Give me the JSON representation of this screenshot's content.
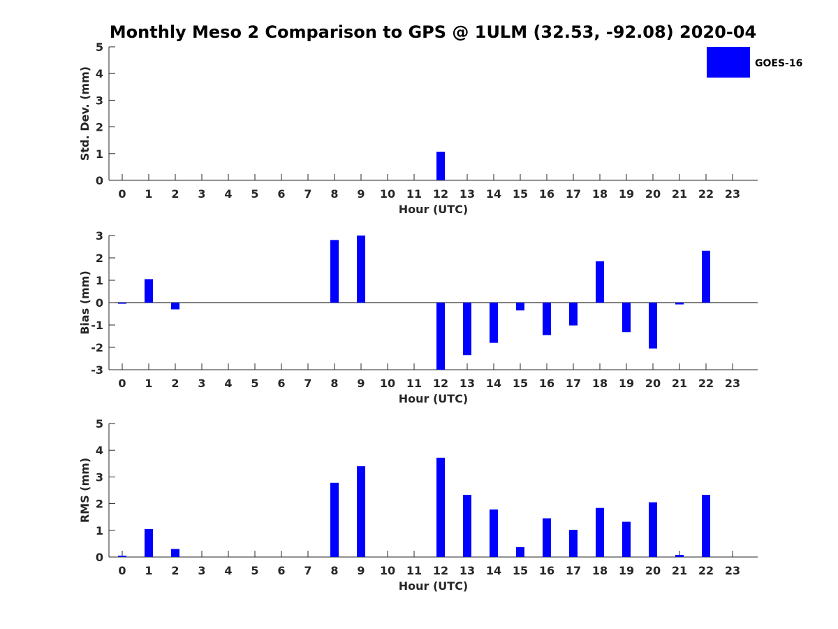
{
  "title": "Monthly Meso 2 Comparison to GPS @ 1ULM (32.53, -92.08) 2020-04",
  "legend": {
    "label": "GOES-16",
    "color": "#0000ff",
    "placement": "top-right"
  },
  "bar_color": "#0000ff",
  "chart_data": [
    {
      "type": "bar",
      "id": "std",
      "series_name": "GOES-16",
      "categories": [
        "0",
        "1",
        "2",
        "3",
        "4",
        "5",
        "6",
        "7",
        "8",
        "9",
        "10",
        "11",
        "12",
        "13",
        "14",
        "15",
        "16",
        "17",
        "18",
        "19",
        "20",
        "21",
        "22",
        "23"
      ],
      "values": [
        null,
        null,
        null,
        null,
        null,
        null,
        null,
        null,
        null,
        null,
        null,
        null,
        1.07,
        null,
        null,
        null,
        null,
        null,
        null,
        null,
        null,
        null,
        null,
        null
      ],
      "xlabel": "Hour (UTC)",
      "ylabel": "Std. Dev. (mm)",
      "ylim": [
        0,
        5
      ],
      "yticks": [
        "0",
        "1",
        "2",
        "3",
        "4",
        "5"
      ],
      "grid": false
    },
    {
      "type": "bar",
      "id": "bias",
      "series_name": "GOES-16",
      "categories": [
        "0",
        "1",
        "2",
        "3",
        "4",
        "5",
        "6",
        "7",
        "8",
        "9",
        "10",
        "11",
        "12",
        "13",
        "14",
        "15",
        "16",
        "17",
        "18",
        "19",
        "20",
        "21",
        "22",
        "23"
      ],
      "values": [
        -0.05,
        1.05,
        -0.3,
        null,
        null,
        null,
        null,
        null,
        2.8,
        3.0,
        null,
        null,
        -3.0,
        -2.35,
        -1.8,
        -0.35,
        -1.45,
        -1.02,
        1.85,
        -1.32,
        -2.05,
        -0.08,
        2.32,
        null
      ],
      "xlabel": "Hour (UTC)",
      "ylabel": "Bias (mm)",
      "ylim": [
        -3,
        3
      ],
      "yticks": [
        "-3",
        "-2",
        "-1",
        "0",
        "1",
        "2",
        "3"
      ],
      "grid": false,
      "zero_line": true
    },
    {
      "type": "bar",
      "id": "rms",
      "series_name": "GOES-16",
      "categories": [
        "0",
        "1",
        "2",
        "3",
        "4",
        "5",
        "6",
        "7",
        "8",
        "9",
        "10",
        "11",
        "12",
        "13",
        "14",
        "15",
        "16",
        "17",
        "18",
        "19",
        "20",
        "21",
        "22",
        "23"
      ],
      "values": [
        0.05,
        1.05,
        0.3,
        null,
        null,
        null,
        null,
        null,
        2.78,
        3.4,
        null,
        null,
        3.72,
        2.33,
        1.78,
        0.37,
        1.45,
        1.02,
        1.84,
        1.32,
        2.05,
        0.08,
        2.33,
        null
      ],
      "xlabel": "Hour (UTC)",
      "ylabel": "RMS (mm)",
      "ylim": [
        0,
        5
      ],
      "yticks": [
        "0",
        "1",
        "2",
        "3",
        "4",
        "5"
      ],
      "grid": false
    }
  ]
}
